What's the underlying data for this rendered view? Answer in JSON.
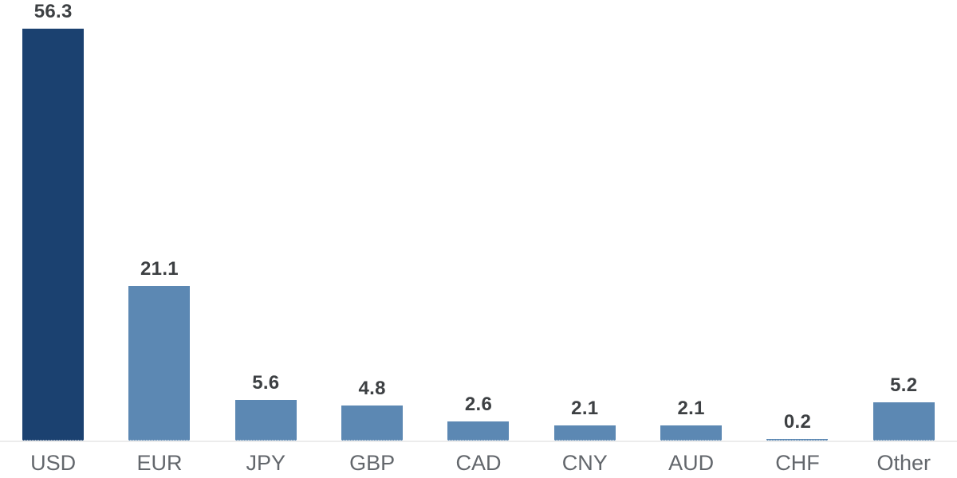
{
  "chart_data": {
    "type": "bar",
    "title": "",
    "xlabel": "",
    "ylabel": "",
    "categories": [
      "USD",
      "EUR",
      "JPY",
      "GBP",
      "CAD",
      "CNY",
      "AUD",
      "CHF",
      "Other"
    ],
    "values": [
      56.3,
      21.1,
      5.6,
      4.8,
      2.6,
      2.1,
      2.1,
      0.2,
      5.2
    ],
    "value_labels": [
      "56.3",
      "21.1",
      "5.6",
      "4.8",
      "2.6",
      "2.1",
      "2.1",
      "0.2",
      "5.2"
    ],
    "ylim": [
      0,
      60
    ],
    "grid": false,
    "legend": null,
    "highlight_category": "USD",
    "colors": {
      "highlight_bar": "#1b4170",
      "default_bar": "#5c88b3",
      "value_label": "#3d4043",
      "category_label": "#63676c",
      "baseline": "#ececec",
      "background": "#ffffff"
    }
  }
}
